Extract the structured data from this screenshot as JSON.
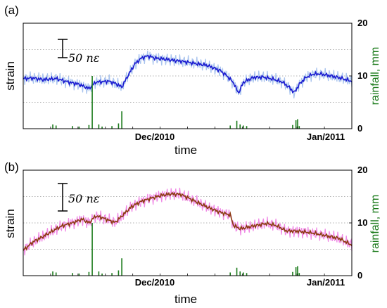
{
  "chart_data": [
    {
      "type": "line",
      "panel_label": "(a)",
      "ylabel": "strain",
      "ylabel2": "rainfall, mm",
      "xlabel": "time",
      "x_tick_labels": [
        "Dec/2010",
        "Jan/2011"
      ],
      "y2_ticks": [
        0,
        10,
        20
      ],
      "y2lim": [
        0,
        20
      ],
      "scale_bar_label": "50 nε",
      "colors": {
        "raw": "#a9c4ee",
        "smooth": "#1a1ad0",
        "rain": "#1a7a1a"
      },
      "grid": "dotted",
      "strain_x": [
        0,
        0.03,
        0.06,
        0.1,
        0.14,
        0.17,
        0.2,
        0.22,
        0.24,
        0.26,
        0.28,
        0.3,
        0.32,
        0.34,
        0.36,
        0.38,
        0.4,
        0.44,
        0.48,
        0.52,
        0.56,
        0.6,
        0.62,
        0.64,
        0.655,
        0.67,
        0.7,
        0.73,
        0.76,
        0.79,
        0.81,
        0.825,
        0.84,
        0.86,
        0.88,
        0.9,
        0.93,
        0.96,
        1.0
      ],
      "strain_y": [
        9.5,
        9.6,
        9.3,
        9.5,
        8.8,
        8.4,
        7.6,
        8.8,
        8.9,
        9.0,
        8.6,
        7.9,
        10.2,
        12.3,
        13.4,
        13.8,
        13.4,
        13.1,
        12.8,
        12.4,
        12.0,
        11.0,
        10.0,
        8.7,
        6.7,
        8.8,
        9.7,
        9.8,
        9.4,
        8.8,
        7.8,
        6.8,
        8.4,
        9.7,
        10.3,
        10.4,
        10.1,
        9.7,
        9.0
      ],
      "rain_x": [
        0.09,
        0.1,
        0.15,
        0.17,
        0.2,
        0.21,
        0.23,
        0.24,
        0.27,
        0.29,
        0.3,
        0.63,
        0.65,
        0.66,
        0.67,
        0.68,
        0.82,
        0.83,
        0.835,
        0.84
      ],
      "rain_mm": [
        0.8,
        0.6,
        0.5,
        0.4,
        0.7,
        10.0,
        0.8,
        0.4,
        0.5,
        1.0,
        3.3,
        0.6,
        1.5,
        0.8,
        0.6,
        0.5,
        0.7,
        1.6,
        1.8,
        0.5
      ]
    },
    {
      "type": "line",
      "panel_label": "(b)",
      "ylabel": "strain",
      "ylabel2": "rainfall, mm",
      "xlabel": "time",
      "x_tick_labels": [
        "Dec/2010",
        "Jan/2011"
      ],
      "y2_ticks": [
        0,
        10,
        20
      ],
      "y2lim": [
        0,
        20
      ],
      "scale_bar_label": "50 nε",
      "colors": {
        "raw": "#f08ae6",
        "smooth": "#8b3a10",
        "rain": "#1a7a1a"
      },
      "grid": "dotted",
      "strain_x": [
        0,
        0.03,
        0.06,
        0.09,
        0.12,
        0.15,
        0.18,
        0.2,
        0.22,
        0.24,
        0.26,
        0.28,
        0.3,
        0.33,
        0.36,
        0.39,
        0.42,
        0.45,
        0.48,
        0.5,
        0.53,
        0.56,
        0.6,
        0.63,
        0.64,
        0.66,
        0.7,
        0.74,
        0.77,
        0.8,
        0.84,
        0.88,
        0.92,
        0.96,
        1.0
      ],
      "strain_y": [
        4.8,
        6.4,
        7.4,
        8.5,
        9.5,
        10.0,
        10.7,
        10.0,
        11.3,
        11.0,
        10.5,
        10.1,
        11.3,
        13.1,
        14.1,
        14.7,
        15.2,
        15.5,
        15.4,
        14.8,
        13.9,
        13.0,
        12.0,
        11.5,
        9.5,
        8.9,
        9.4,
        9.9,
        9.5,
        8.5,
        8.4,
        8.1,
        7.6,
        7.1,
        5.8
      ],
      "rain_x": [
        0.09,
        0.1,
        0.15,
        0.17,
        0.2,
        0.21,
        0.23,
        0.24,
        0.27,
        0.29,
        0.3,
        0.63,
        0.65,
        0.66,
        0.67,
        0.68,
        0.82,
        0.83,
        0.835,
        0.84
      ],
      "rain_mm": [
        0.8,
        0.6,
        0.5,
        0.4,
        0.7,
        10.0,
        0.8,
        0.4,
        0.5,
        1.0,
        3.3,
        0.6,
        1.5,
        0.8,
        0.6,
        0.5,
        0.7,
        1.6,
        1.8,
        0.5
      ]
    }
  ]
}
